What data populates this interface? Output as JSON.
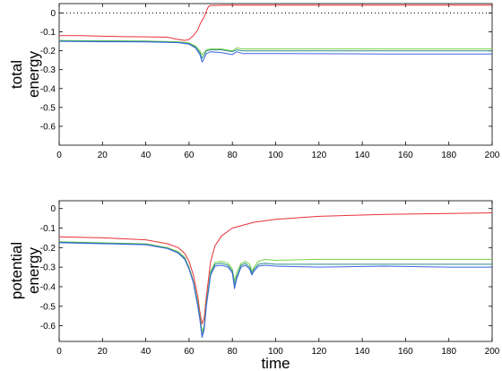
{
  "chart_data": [
    {
      "type": "line",
      "ylabel": [
        "total",
        "energy"
      ],
      "xlabel": "",
      "xlim": [
        0,
        200
      ],
      "ylim": [
        -0.7,
        0.05
      ],
      "xticks": [
        0,
        20,
        40,
        60,
        80,
        100,
        120,
        140,
        160,
        180,
        200
      ],
      "yticks": [
        0,
        -0.1,
        -0.2,
        -0.3,
        -0.4,
        -0.5,
        -0.6
      ],
      "ytick_labels": [
        "0",
        "-0.1",
        "-0.2",
        "-0.3",
        "-0.4",
        "-0.5",
        "-0.6"
      ],
      "reference_line": {
        "y": 0,
        "style": "dotted",
        "color": "#000000"
      },
      "series": [
        {
          "color": "#e8303a",
          "x": [
            0,
            10,
            20,
            30,
            40,
            50,
            54,
            58,
            60,
            62,
            64,
            65,
            66,
            67,
            68,
            69,
            70,
            80,
            100,
            150,
            200
          ],
          "y": [
            -0.12,
            -0.12,
            -0.123,
            -0.125,
            -0.126,
            -0.128,
            -0.138,
            -0.145,
            -0.14,
            -0.12,
            -0.09,
            -0.06,
            -0.04,
            -0.02,
            0.01,
            0.035,
            0.04,
            0.042,
            0.042,
            0.042,
            0.042
          ]
        },
        {
          "color": "#7ad14a",
          "x": [
            0,
            20,
            40,
            55,
            60,
            63,
            65,
            66,
            67,
            68,
            70,
            75,
            80,
            82,
            85,
            100,
            150,
            200
          ],
          "y": [
            -0.145,
            -0.147,
            -0.148,
            -0.152,
            -0.158,
            -0.175,
            -0.2,
            -0.22,
            -0.21,
            -0.195,
            -0.19,
            -0.19,
            -0.2,
            -0.185,
            -0.19,
            -0.19,
            -0.19,
            -0.19
          ]
        },
        {
          "color": "#2a8f86",
          "x": [
            0,
            20,
            40,
            55,
            60,
            63,
            65,
            66,
            67,
            68,
            70,
            75,
            80,
            82,
            85,
            100,
            150,
            200
          ],
          "y": [
            -0.148,
            -0.15,
            -0.151,
            -0.155,
            -0.162,
            -0.18,
            -0.21,
            -0.24,
            -0.222,
            -0.2,
            -0.195,
            -0.195,
            -0.205,
            -0.195,
            -0.2,
            -0.2,
            -0.2,
            -0.2
          ]
        },
        {
          "color": "#3b64e0",
          "x": [
            0,
            20,
            40,
            55,
            60,
            63,
            65,
            66,
            67,
            68,
            70,
            75,
            80,
            82,
            85,
            100,
            150,
            200
          ],
          "y": [
            -0.15,
            -0.152,
            -0.153,
            -0.157,
            -0.165,
            -0.185,
            -0.22,
            -0.26,
            -0.24,
            -0.215,
            -0.205,
            -0.21,
            -0.22,
            -0.205,
            -0.215,
            -0.215,
            -0.217,
            -0.217
          ]
        }
      ]
    },
    {
      "type": "line",
      "ylabel": [
        "potential",
        "energy"
      ],
      "xlabel": "time",
      "xlim": [
        0,
        200
      ],
      "ylim": [
        -0.68,
        0.04
      ],
      "xticks": [
        0,
        20,
        40,
        60,
        80,
        100,
        120,
        140,
        160,
        180,
        200
      ],
      "yticks": [
        0,
        -0.1,
        -0.2,
        -0.3,
        -0.4,
        -0.5,
        -0.6
      ],
      "ytick_labels": [
        "0",
        "-0.1",
        "-0.2",
        "-0.3",
        "-0.4",
        "-0.5",
        "-0.6"
      ],
      "series": [
        {
          "color": "#e8303a",
          "x": [
            0,
            20,
            40,
            50,
            55,
            58,
            60,
            62,
            64,
            65,
            66,
            67,
            68,
            70,
            72,
            75,
            80,
            90,
            100,
            120,
            150,
            180,
            200
          ],
          "y": [
            -0.145,
            -0.15,
            -0.16,
            -0.18,
            -0.2,
            -0.23,
            -0.27,
            -0.34,
            -0.45,
            -0.53,
            -0.59,
            -0.56,
            -0.45,
            -0.27,
            -0.19,
            -0.14,
            -0.1,
            -0.07,
            -0.055,
            -0.04,
            -0.03,
            -0.025,
            -0.022
          ]
        },
        {
          "color": "#7ad14a",
          "x": [
            0,
            20,
            40,
            50,
            55,
            58,
            60,
            62,
            64,
            65,
            66,
            67,
            68,
            70,
            72,
            75,
            78,
            80,
            81,
            82,
            84,
            86,
            88,
            89,
            90,
            92,
            95,
            100,
            120,
            150,
            180,
            200
          ],
          "y": [
            -0.17,
            -0.175,
            -0.18,
            -0.2,
            -0.22,
            -0.25,
            -0.3,
            -0.37,
            -0.48,
            -0.55,
            -0.63,
            -0.6,
            -0.48,
            -0.32,
            -0.275,
            -0.27,
            -0.28,
            -0.31,
            -0.37,
            -0.33,
            -0.28,
            -0.27,
            -0.285,
            -0.32,
            -0.3,
            -0.27,
            -0.26,
            -0.265,
            -0.26,
            -0.26,
            -0.26,
            -0.26
          ]
        },
        {
          "color": "#2a8f86",
          "x": [
            0,
            20,
            40,
            50,
            55,
            58,
            60,
            62,
            64,
            65,
            66,
            67,
            68,
            70,
            72,
            75,
            78,
            80,
            81,
            82,
            84,
            86,
            88,
            89,
            90,
            92,
            95,
            100,
            120,
            150,
            180,
            200
          ],
          "y": [
            -0.172,
            -0.178,
            -0.183,
            -0.203,
            -0.225,
            -0.255,
            -0.305,
            -0.375,
            -0.49,
            -0.56,
            -0.65,
            -0.61,
            -0.49,
            -0.33,
            -0.285,
            -0.28,
            -0.29,
            -0.32,
            -0.39,
            -0.35,
            -0.29,
            -0.28,
            -0.3,
            -0.33,
            -0.31,
            -0.285,
            -0.28,
            -0.285,
            -0.285,
            -0.285,
            -0.285,
            -0.285
          ]
        },
        {
          "color": "#3b64e0",
          "x": [
            0,
            20,
            40,
            50,
            55,
            58,
            60,
            62,
            64,
            65,
            66,
            67,
            68,
            70,
            72,
            75,
            78,
            80,
            81,
            82,
            84,
            86,
            88,
            89,
            90,
            92,
            95,
            100,
            120,
            150,
            180,
            200
          ],
          "y": [
            -0.175,
            -0.18,
            -0.185,
            -0.205,
            -0.228,
            -0.26,
            -0.31,
            -0.38,
            -0.5,
            -0.57,
            -0.66,
            -0.62,
            -0.5,
            -0.34,
            -0.295,
            -0.29,
            -0.3,
            -0.33,
            -0.41,
            -0.36,
            -0.3,
            -0.29,
            -0.31,
            -0.34,
            -0.32,
            -0.295,
            -0.29,
            -0.295,
            -0.3,
            -0.295,
            -0.3,
            -0.3
          ]
        }
      ]
    }
  ]
}
